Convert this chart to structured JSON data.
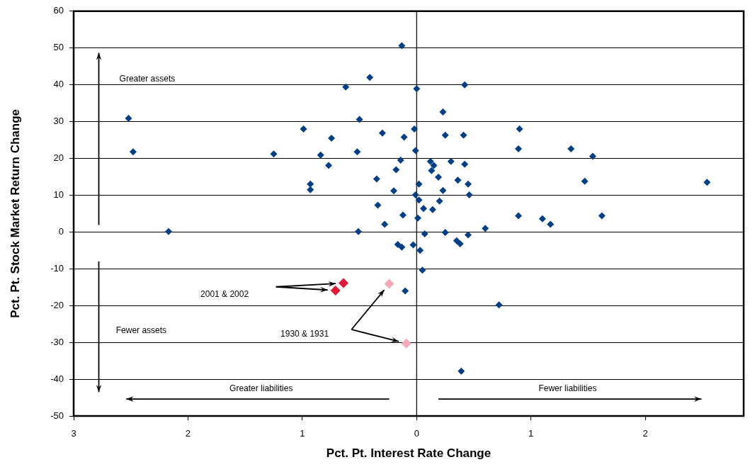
{
  "chart_data": {
    "type": "scatter",
    "xlabel": "Pct. Pt. Interest Rate Change",
    "ylabel": "Pct. Pt. Stock Market Return Change",
    "xlim": [
      -3,
      2.86
    ],
    "xticks": [
      {
        "value": -3,
        "label": "3"
      },
      {
        "value": -2,
        "label": "2"
      },
      {
        "value": -1,
        "label": "1"
      },
      0,
      1,
      2
    ],
    "ylim": [
      -50,
      60
    ],
    "yticks": [
      -50,
      -40,
      -30,
      -20,
      -10,
      0,
      10,
      20,
      30,
      40,
      50,
      60
    ],
    "grid": "y",
    "marker": "diamond",
    "ref_lines": [
      {
        "axis": "x",
        "value": 0,
        "color": "#000000"
      }
    ],
    "annotations": [
      "Greater assets",
      "Fewer assets",
      "Greater liabilities",
      "Fewer liabilities",
      "2001 & 2002",
      "1930 & 1931"
    ],
    "series": [
      {
        "color": "#003f87",
        "x": [
          -0.13,
          -0.41,
          -0.62,
          0.0,
          -2.52,
          -0.5,
          -0.99,
          -0.3,
          -0.745,
          -0.11,
          -0.02,
          -2.48,
          -1.25,
          -0.84,
          -0.52,
          -0.01,
          -0.14,
          -0.77,
          -0.18,
          -0.35,
          -0.93,
          -0.93,
          -0.2,
          0.02,
          -0.01,
          0.02,
          -0.34,
          -0.12,
          0.01,
          -0.28,
          -2.17,
          -0.51,
          0.06,
          0.07,
          0.42,
          0.23,
          0.9,
          0.25,
          0.41,
          0.89,
          1.35,
          1.54,
          0.12,
          0.15,
          0.3,
          0.42,
          0.13,
          0.19,
          0.36,
          0.45,
          1.47,
          2.54,
          0.23,
          0.46,
          0.2,
          0.14,
          0.89,
          1.1,
          1.17,
          1.62,
          0.6,
          0.25,
          0.45,
          -0.165,
          -0.13,
          -0.03,
          0.03,
          0.05,
          -0.1,
          0.35,
          0.38,
          0.72,
          0.39
        ],
        "values": [
          50.6,
          42.0,
          39.4,
          38.9,
          30.9,
          30.6,
          28.0,
          26.9,
          25.5,
          25.8,
          28.0,
          21.8,
          21.2,
          20.9,
          21.8,
          22.1,
          19.5,
          18.1,
          16.9,
          14.4,
          13.0,
          11.5,
          11.2,
          13.0,
          10.1,
          8.7,
          7.3,
          4.6,
          3.8,
          2.1,
          0.1,
          0.1,
          6.4,
          -0.5,
          40.0,
          32.6,
          28.0,
          26.3,
          26.3,
          22.6,
          22.6,
          20.6,
          19.2,
          18.1,
          19.2,
          18.4,
          16.7,
          14.9,
          14.1,
          13.0,
          13.8,
          13.5,
          11.3,
          10.1,
          8.4,
          6.1,
          4.4,
          3.6,
          2.1,
          4.4,
          1.0,
          -0.1,
          -0.8,
          -3.4,
          -4.1,
          -3.5,
          -5.0,
          -10.4,
          -16.0,
          -2.4,
          -3.2,
          -19.8,
          -37.8
        ]
      },
      {
        "color": "#e31837",
        "x": [
          -0.64,
          -0.71
        ],
        "values": [
          -13.9,
          -15.9
        ]
      },
      {
        "color": "#f4aab9",
        "x": [
          -0.24,
          -0.09
        ],
        "values": [
          -14.1,
          -30.3
        ]
      }
    ]
  }
}
